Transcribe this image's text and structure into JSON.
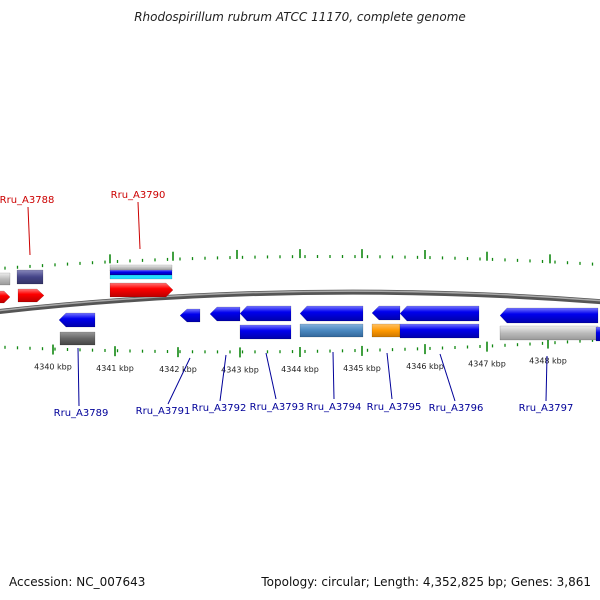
{
  "title": "Rhodospirillum rubrum ATCC 11170, complete genome",
  "footer": {
    "accession": "Accession: NC_007643",
    "summary": "Topology: circular; Length: 4,352,825 bp; Genes: 3,861"
  },
  "colors": {
    "strand_red": "#ff0000",
    "strand_blue": "#0000ee",
    "gene_label_red": "#cc0000",
    "gene_label_blue": "#000099",
    "tick_green": "#118811",
    "steelblue": "#4a88c0",
    "orange": "#ff9900",
    "gray": "#bbbbbb",
    "darkgray": "#666666",
    "slate": "#444488"
  },
  "ticks": [
    {
      "label": "4340 kbp"
    },
    {
      "label": "4341 kbp"
    },
    {
      "label": "4342 kbp"
    },
    {
      "label": "4343 kbp"
    },
    {
      "label": "4344 kbp"
    },
    {
      "label": "4345 kbp"
    },
    {
      "label": "4346 kbp"
    },
    {
      "label": "4347 kbp"
    },
    {
      "label": "4348 kbp"
    }
  ],
  "gene_labels": [
    {
      "name": "Rru_A3788",
      "color": "#cc0000"
    },
    {
      "name": "Rru_A3790",
      "color": "#cc0000"
    },
    {
      "name": "Rru_A3789",
      "color": "#000099"
    },
    {
      "name": "Rru_A3791",
      "color": "#000099"
    },
    {
      "name": "Rru_A3792",
      "color": "#000099"
    },
    {
      "name": "Rru_A3793",
      "color": "#000099"
    },
    {
      "name": "Rru_A3794",
      "color": "#000099"
    },
    {
      "name": "Rru_A3795",
      "color": "#000099"
    },
    {
      "name": "Rru_A3796",
      "color": "#000099"
    },
    {
      "name": "Rru_A3797",
      "color": "#000099"
    }
  ]
}
